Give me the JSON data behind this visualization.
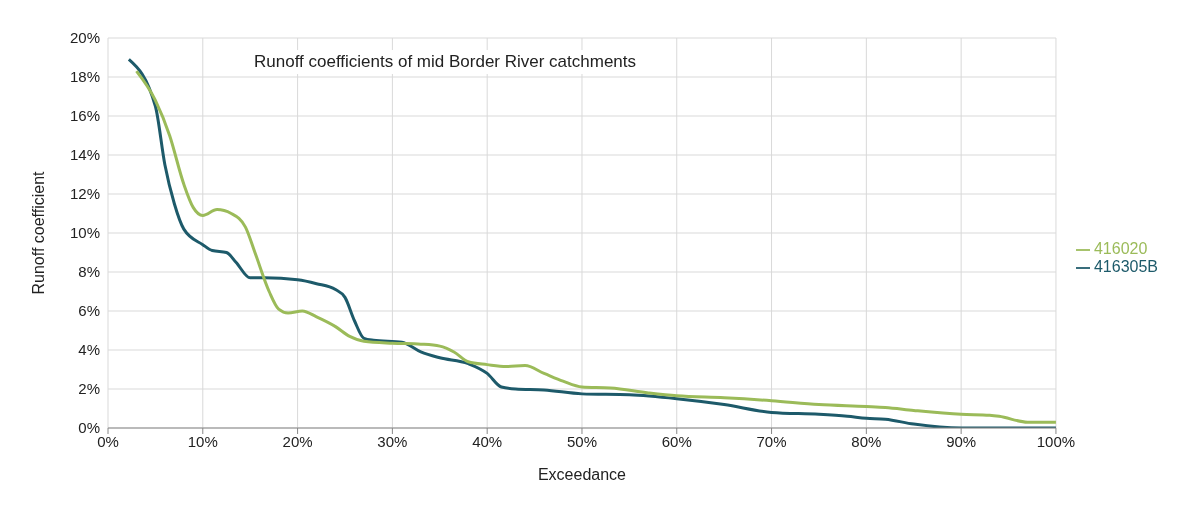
{
  "chart_data": {
    "type": "line",
    "title": "Runoff coefficients of mid Border River catchments",
    "xlabel": "Exceedance",
    "ylabel": "Runoff coefficient",
    "xlim": [
      0,
      100
    ],
    "xticks": [
      {
        "value": 0,
        "label": "0%"
      },
      {
        "value": 10,
        "label": "10%"
      },
      {
        "value": 20,
        "label": "20%"
      },
      {
        "value": 30,
        "label": "30%"
      },
      {
        "value": 40,
        "label": "40%"
      },
      {
        "value": 50,
        "label": "50%"
      },
      {
        "value": 60,
        "label": "60%"
      },
      {
        "value": 70,
        "label": "70%"
      },
      {
        "value": 80,
        "label": "80%"
      },
      {
        "value": 90,
        "label": "90%"
      },
      {
        "value": 100,
        "label": "100%"
      }
    ],
    "ylim": [
      0,
      20
    ],
    "yticks": [
      {
        "value": 0,
        "label": "0%"
      },
      {
        "value": 2,
        "label": "2%"
      },
      {
        "value": 4,
        "label": "4%"
      },
      {
        "value": 6,
        "label": "6%"
      },
      {
        "value": 8,
        "label": "8%"
      },
      {
        "value": 10,
        "label": "10%"
      },
      {
        "value": 12,
        "label": "12%"
      },
      {
        "value": 14,
        "label": "14%"
      },
      {
        "value": 16,
        "label": "16%"
      },
      {
        "value": 18,
        "label": "18%"
      },
      {
        "value": 20,
        "label": "20%"
      }
    ],
    "grid": true,
    "legend": "right",
    "marker": "none",
    "line_style": "solid",
    "series": [
      {
        "name": "416305B",
        "color": "#1d5a6a",
        "x": [
          2.2,
          5,
          6,
          7,
          8,
          10,
          11,
          12.5,
          13.5,
          15,
          16.5,
          20,
          22,
          24,
          25,
          26,
          27,
          28,
          31,
          33,
          35,
          38,
          40,
          41.5,
          43,
          46,
          50,
          55,
          60,
          65,
          70,
          75,
          78,
          80,
          82,
          85,
          90,
          95,
          100
        ],
        "values": [
          18.9,
          16.5,
          13.5,
          11.5,
          10.2,
          9.4,
          9.1,
          9.0,
          8.5,
          7.7,
          7.7,
          7.6,
          7.4,
          7.1,
          6.7,
          5.5,
          4.6,
          4.5,
          4.4,
          3.9,
          3.6,
          3.3,
          2.8,
          2.1,
          2.0,
          1.95,
          1.75,
          1.7,
          1.5,
          1.2,
          0.8,
          0.7,
          0.6,
          0.5,
          0.45,
          0.2,
          0,
          0,
          0
        ]
      },
      {
        "name": "416020",
        "color": "#9bbb59",
        "x": [
          3,
          5,
          6.5,
          8,
          9,
          10,
          11.5,
          13,
          14.5,
          15.5,
          17,
          18,
          19,
          20.5,
          22,
          24,
          25.5,
          27,
          30,
          33,
          35,
          36.5,
          38,
          40,
          42,
          44,
          46,
          48,
          50,
          53,
          57,
          60,
          65,
          70,
          75,
          80,
          82,
          85,
          90,
          93,
          94,
          97,
          100
        ],
        "values": [
          18.3,
          16.8,
          15,
          12.5,
          11.3,
          10.9,
          11.2,
          11.0,
          10.3,
          9,
          7,
          6.1,
          5.9,
          6.0,
          5.7,
          5.2,
          4.7,
          4.45,
          4.35,
          4.3,
          4.2,
          3.9,
          3.4,
          3.25,
          3.15,
          3.2,
          2.8,
          2.4,
          2.1,
          2.05,
          1.8,
          1.65,
          1.55,
          1.4,
          1.2,
          1.1,
          1.05,
          0.9,
          0.7,
          0.65,
          0.6,
          0.3,
          0.3
        ]
      }
    ]
  }
}
